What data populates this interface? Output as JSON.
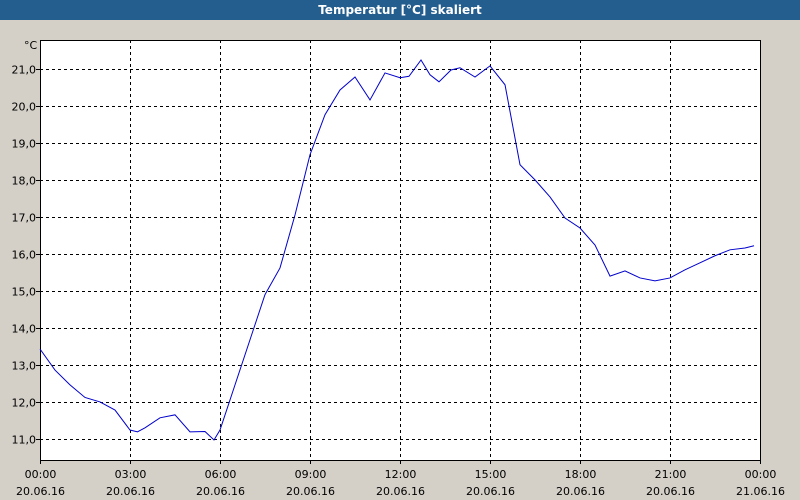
{
  "window_title": "Temperatur [°C] skaliert",
  "chart_data": {
    "type": "line",
    "y_unit": "°C",
    "x": [
      0,
      0.5,
      1,
      1.5,
      2,
      2.5,
      3,
      3.25,
      3.5,
      4,
      4.5,
      5,
      5.5,
      5.8,
      6,
      6.5,
      7,
      7.5,
      8,
      8.5,
      9,
      9.5,
      10,
      10.5,
      11,
      11.5,
      12,
      12.3,
      12.7,
      13,
      13.3,
      13.7,
      14,
      14.5,
      15,
      15.5,
      16,
      16.5,
      17,
      17.5,
      18,
      18.5,
      19,
      19.5,
      20,
      20.5,
      21,
      21.5,
      22,
      22.5,
      23,
      23.5,
      23.8
    ],
    "series": [
      {
        "color": "#0000cc",
        "values": [
          13.43,
          12.86,
          12.46,
          12.12,
          12.0,
          11.78,
          11.24,
          11.19,
          11.3,
          11.57,
          11.65,
          11.19,
          11.2,
          10.97,
          11.24,
          12.46,
          13.68,
          14.9,
          15.62,
          17.05,
          18.68,
          19.76,
          20.43,
          20.78,
          20.16,
          20.89,
          20.76,
          20.8,
          21.24,
          20.84,
          20.65,
          20.97,
          21.03,
          20.78,
          21.08,
          20.57,
          18.41,
          18.0,
          17.54,
          16.97,
          16.7,
          16.24,
          15.4,
          15.54,
          15.35,
          15.27,
          15.35,
          15.57,
          15.76,
          15.95,
          16.11,
          16.16,
          16.22
        ]
      }
    ],
    "xlim": [
      0,
      24
    ],
    "xticks": [
      {
        "value": 0,
        "label": "00:00",
        "date": "20.06.16"
      },
      {
        "value": 3,
        "label": "03:00",
        "date": "20.06.16"
      },
      {
        "value": 6,
        "label": "06:00",
        "date": "20.06.16"
      },
      {
        "value": 9,
        "label": "09:00",
        "date": "20.06.16"
      },
      {
        "value": 12,
        "label": "12:00",
        "date": "20.06.16"
      },
      {
        "value": 15,
        "label": "15:00",
        "date": "20.06.16"
      },
      {
        "value": 18,
        "label": "18:00",
        "date": "20.06.16"
      },
      {
        "value": 21,
        "label": "21:00",
        "date": "20.06.16"
      },
      {
        "value": 24,
        "label": "00:00",
        "date": "21.06.16"
      }
    ],
    "ylim": [
      10.43,
      21.78
    ],
    "yticks": [
      {
        "value": 11,
        "label": "11,0"
      },
      {
        "value": 12,
        "label": "12,0"
      },
      {
        "value": 13,
        "label": "13,0"
      },
      {
        "value": 14,
        "label": "14,0"
      },
      {
        "value": 15,
        "label": "15,0"
      },
      {
        "value": 16,
        "label": "16,0"
      },
      {
        "value": 17,
        "label": "17,0"
      },
      {
        "value": 18,
        "label": "18,0"
      },
      {
        "value": 19,
        "label": "19,0"
      },
      {
        "value": 20,
        "label": "20,0"
      },
      {
        "value": 21,
        "label": "21,0"
      }
    ],
    "grid": true
  }
}
